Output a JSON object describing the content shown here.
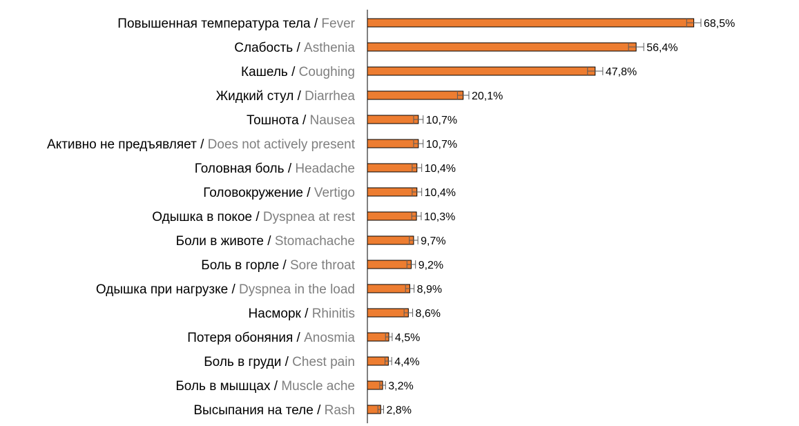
{
  "chart_data": {
    "type": "bar",
    "orientation": "horizontal",
    "title": "",
    "xlabel": "",
    "ylabel": "",
    "xlim": [
      0,
      72
    ],
    "grid": false,
    "legend": "none",
    "bar_color": "#ed7d31",
    "categories_ru": [
      "Повышенная температура тела",
      "Слабость",
      "Кашель",
      "Жидкий стул",
      "Тошнота",
      "Активно не предъявляет",
      "Головная боль",
      "Головокружение",
      "Одышка в покое",
      "Боли в животе",
      "Боль в горле",
      "Одышка при нагрузке",
      "Насморк",
      "Потеря обоняния",
      "Боль в груди",
      "Боль в мышцах",
      "Высыпания на теле"
    ],
    "categories_en": [
      "Fever",
      "Asthenia",
      "Coughing",
      "Diarrhea",
      "Nausea",
      "Does not actively present",
      "Headache",
      "Vertigo",
      "Dyspnea at rest",
      "Stomachache",
      "Sore throat",
      "Dyspnea in the load",
      "Rhinitis",
      "Anosmia",
      "Chest pain",
      "Muscle ache",
      "Rash"
    ],
    "values": [
      68.5,
      56.4,
      47.8,
      20.1,
      10.7,
      10.7,
      10.4,
      10.4,
      10.3,
      9.7,
      9.2,
      8.9,
      8.6,
      4.5,
      4.4,
      3.2,
      2.8
    ],
    "value_labels": [
      "68,5%",
      "56,4%",
      "47,8%",
      "20,1%",
      "10,7%",
      "10,7%",
      "10,4%",
      "10,4%",
      "10,3%",
      "9,7%",
      "9,2%",
      "8,9%",
      "8,6%",
      "4,5%",
      "4,4%",
      "3,2%",
      "2,8%"
    ],
    "error_low": [
      67.0,
      54.8,
      46.2,
      18.9,
      9.7,
      9.7,
      9.4,
      9.4,
      9.3,
      8.8,
      8.3,
      8.0,
      7.7,
      3.8,
      3.7,
      2.6,
      2.2
    ],
    "error_high": [
      70.0,
      58.0,
      49.4,
      21.3,
      11.7,
      11.7,
      11.4,
      11.4,
      11.3,
      10.6,
      10.1,
      9.8,
      9.5,
      5.2,
      5.1,
      3.8,
      3.4
    ]
  }
}
